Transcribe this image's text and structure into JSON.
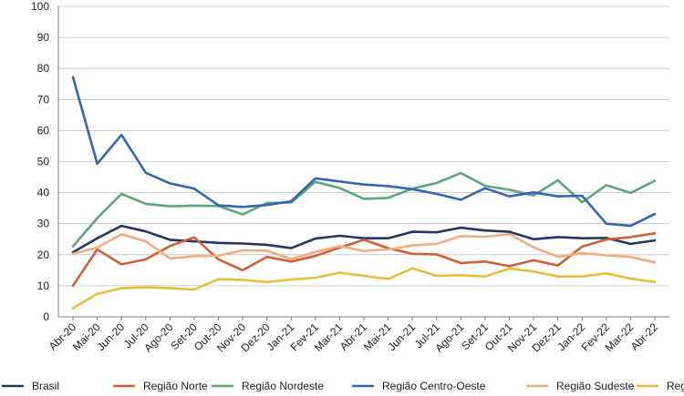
{
  "chart_data": {
    "type": "line",
    "title": "",
    "xlabel": "",
    "ylabel": "",
    "ylim": [
      0,
      100
    ],
    "yticks": [
      0,
      10,
      20,
      30,
      40,
      50,
      60,
      70,
      80,
      90,
      100
    ],
    "grid": true,
    "legend_position": "bottom",
    "categories": [
      "Abr-20",
      "Mai-20",
      "Jun-20",
      "Jul-20",
      "Ago-20",
      "Set-20",
      "Out-20",
      "Nov-20",
      "Dez-20",
      "Jan-21",
      "Fev-21",
      "Mar-21",
      "Abr-21",
      "Mai-21",
      "Jun-21",
      "Jul-21",
      "Ago-21",
      "Set-21",
      "Out-21",
      "Nov-21",
      "Dez-21",
      "Jan-22",
      "Fev-22",
      "Mar-22",
      "Abr-22"
    ],
    "series": [
      {
        "name": "Brasil",
        "color": "#1f3864",
        "values": [
          20.8,
          25.3,
          29.3,
          27.5,
          24.8,
          24.3,
          23.8,
          23.6,
          23.2,
          22.1,
          25.2,
          26.1,
          25.3,
          25.3,
          27.4,
          27.2,
          28.7,
          27.8,
          27.4,
          25.0,
          25.7,
          25.3,
          25.4,
          23.5,
          24.6
        ]
      },
      {
        "name": "Região Norte",
        "color": "#d35f35",
        "values": [
          10.0,
          21.7,
          16.9,
          18.5,
          22.8,
          25.6,
          18.5,
          15.0,
          19.3,
          17.8,
          19.6,
          22.3,
          24.8,
          22.1,
          20.3,
          20.1,
          17.3,
          17.8,
          16.3,
          18.2,
          16.5,
          22.6,
          24.9,
          25.7,
          26.9
        ]
      },
      {
        "name": "Região Nordeste",
        "color": "#5aa77c",
        "values": [
          22.7,
          31.8,
          39.6,
          36.4,
          35.6,
          35.8,
          35.7,
          33.0,
          36.7,
          36.8,
          43.5,
          41.5,
          38.0,
          38.3,
          41.3,
          43.1,
          46.3,
          42.2,
          40.9,
          39.1,
          44.0,
          36.9,
          42.4,
          39.9,
          43.8
        ]
      },
      {
        "name": "Região Centro-Oeste",
        "color": "#3366b3",
        "values": [
          77.2,
          49.3,
          58.6,
          46.4,
          43.0,
          41.3,
          35.9,
          35.4,
          36.0,
          37.2,
          44.6,
          43.6,
          42.6,
          42.1,
          41.1,
          39.6,
          37.7,
          41.4,
          38.8,
          40.1,
          38.8,
          39.0,
          30.0,
          29.3,
          33.1
        ]
      },
      {
        "name": "Região Sudeste",
        "color": "#f0ad82",
        "values": [
          20.3,
          22.3,
          26.6,
          24.3,
          18.8,
          19.5,
          19.7,
          21.4,
          21.3,
          18.6,
          20.9,
          22.8,
          21.2,
          21.7,
          23.0,
          23.5,
          26.0,
          25.8,
          26.6,
          22.4,
          19.3,
          20.5,
          19.8,
          19.3,
          17.5
        ]
      },
      {
        "name": "Região Sul",
        "color": "#e8bf3c",
        "values": [
          2.8,
          7.4,
          9.2,
          9.5,
          9.2,
          8.8,
          12.1,
          11.9,
          11.2,
          12.0,
          12.6,
          14.2,
          13.2,
          12.2,
          15.6,
          13.2,
          13.4,
          13.0,
          15.5,
          14.6,
          13.0,
          13.0,
          14.0,
          12.3,
          11.2
        ]
      }
    ]
  }
}
